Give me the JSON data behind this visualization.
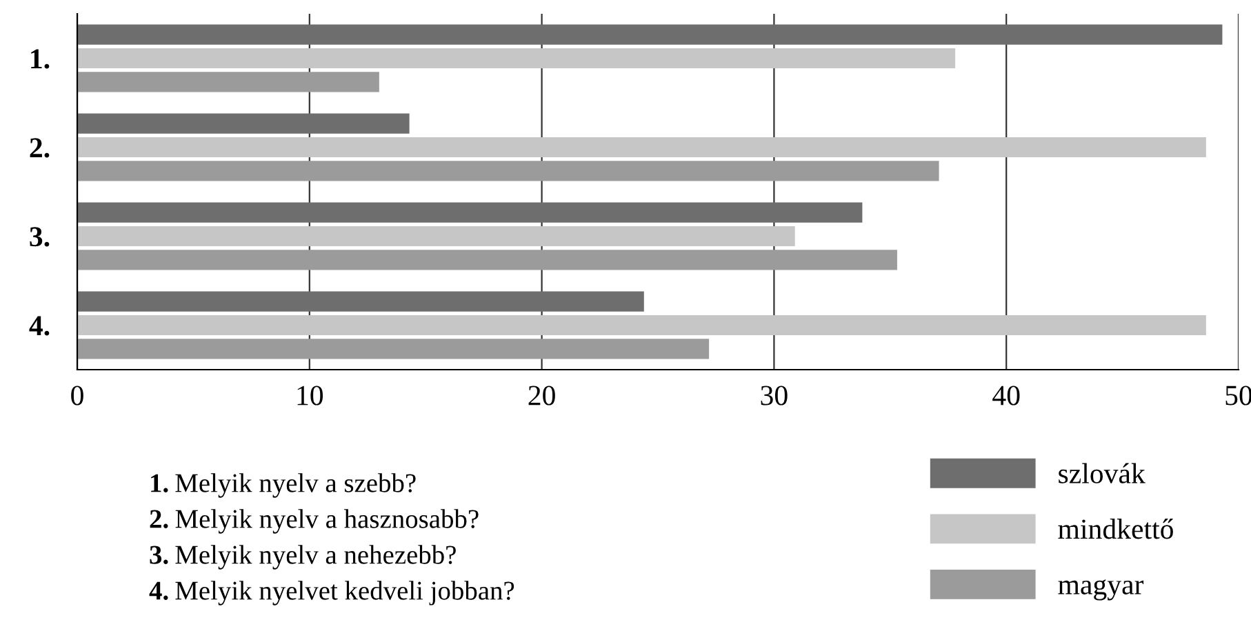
{
  "chart_data": {
    "type": "bar",
    "orientation": "horizontal",
    "categories": [
      "1.",
      "2.",
      "3.",
      "4."
    ],
    "series": [
      {
        "name": "szlovák",
        "color": "#6e6e6e",
        "values": [
          49.3,
          14.3,
          33.8,
          24.4
        ]
      },
      {
        "name": "mindkettő",
        "color": "#c6c6c6",
        "values": [
          37.8,
          48.6,
          30.9,
          48.6
        ]
      },
      {
        "name": "magyar",
        "color": "#9b9b9b",
        "values": [
          13.0,
          37.1,
          35.3,
          27.2
        ]
      }
    ],
    "xlim": [
      0,
      50
    ],
    "xticks": [
      0,
      10,
      20,
      30,
      40,
      50
    ],
    "grid": "x",
    "legend": "bottom right",
    "annotations": [
      "1. Melyik nyelv a szebb?",
      "2. Melyik nyelv a hasznosabb?",
      "3. Melyik nyelv a nehezebb?",
      "4. Melyik nyelvet kedveli jobban?"
    ]
  }
}
